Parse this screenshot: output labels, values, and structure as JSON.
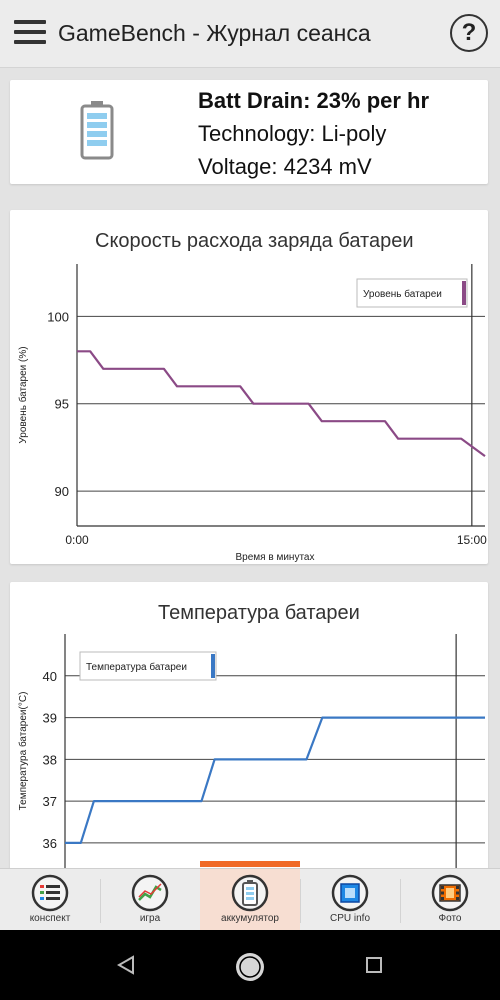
{
  "app_bar": {
    "title": "GameBench - Журнал сеанса",
    "help_label": "?",
    "menu_icon": "hamburger-menu-icon"
  },
  "battery_summary": {
    "icon": "battery-icon",
    "drain": "Batt Drain: 23% per hr",
    "technology": "Technology: Li-poly",
    "voltage": "Voltage: 4234 mV"
  },
  "charts": {
    "drain": {
      "title": "Скорость расхода заряда батареи"
    },
    "temperature": {
      "title": "Температура батареи"
    }
  },
  "chart_data": [
    {
      "type": "line",
      "title": "Скорость расхода заряда батареи",
      "xlabel": "Время в минутах",
      "ylabel": "Уровень батареи (%)",
      "x_tick_labels": [
        "0:00",
        "15:00"
      ],
      "y_ticks": [
        90,
        95,
        100
      ],
      "xlim": [
        0,
        15.5
      ],
      "ylim": [
        88,
        103
      ],
      "grid": true,
      "legend_position": "top-right",
      "series": [
        {
          "name": "Уровень батареи",
          "color": "#8b4a86",
          "x": [
            0,
            0.5,
            1.0,
            3.3,
            3.8,
            6.2,
            6.7,
            8.8,
            9.3,
            11.7,
            12.2,
            14.6,
            15.5
          ],
          "y": [
            98,
            98,
            97,
            97,
            96,
            96,
            95,
            95,
            94,
            94,
            93,
            93,
            92
          ]
        }
      ]
    },
    {
      "type": "line",
      "title": "Температура батареи",
      "xlabel": "",
      "ylabel": "Температура батареи(°C)",
      "y_ticks": [
        36,
        37,
        38,
        39,
        40
      ],
      "xlim": [
        0,
        16
      ],
      "ylim": [
        35.4,
        41
      ],
      "grid": true,
      "legend_position": "top-left",
      "series": [
        {
          "name": "Температура батареи",
          "color": "#3a78c4",
          "x": [
            0,
            0.6,
            1.1,
            5.2,
            5.7,
            9.2,
            9.8,
            16
          ],
          "y": [
            36,
            36,
            37,
            37,
            38,
            38,
            39,
            39
          ]
        }
      ]
    }
  ],
  "bottom_nav": [
    {
      "label": "конспект",
      "icon": "summary-list-icon",
      "active": false
    },
    {
      "label": "игра",
      "icon": "game-graph-icon",
      "active": false
    },
    {
      "label": "аккумулятор",
      "icon": "battery-icon",
      "active": true
    },
    {
      "label": "CPU info",
      "icon": "cpu-icon",
      "active": false
    },
    {
      "label": "Фото",
      "icon": "film-icon",
      "active": false
    }
  ],
  "colors": {
    "accent": "#f06a28",
    "drain_line": "#8b4a86",
    "temperature_line": "#3a78c4"
  },
  "system_nav": [
    "back-icon",
    "home-icon",
    "recents-icon"
  ]
}
